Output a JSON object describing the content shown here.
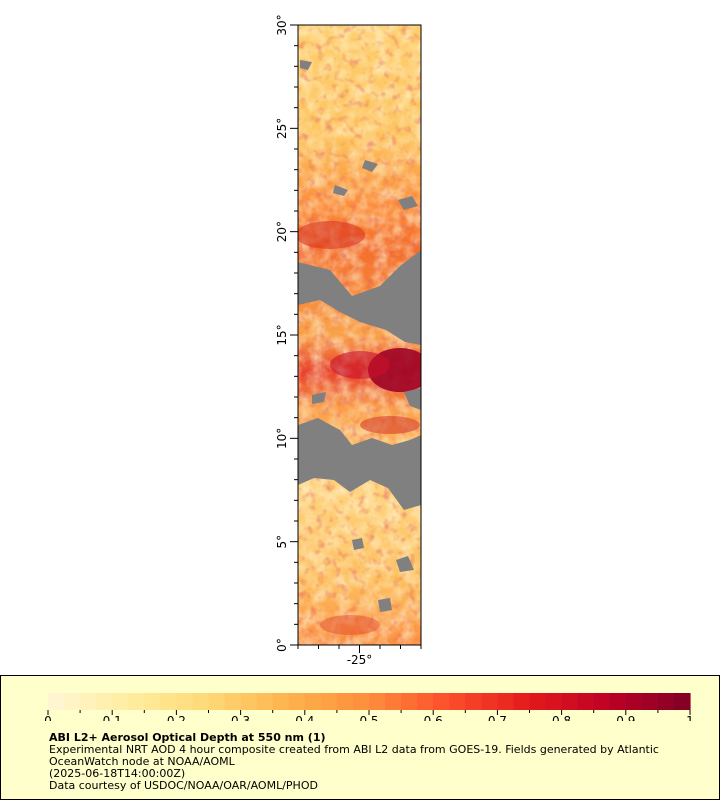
{
  "map": {
    "lat_labels": [
      "0°",
      "5°",
      "10°",
      "15°",
      "20°",
      "25°",
      "30°"
    ],
    "lon_labels": [
      "-25°"
    ],
    "lat_range": [
      0,
      30
    ],
    "lon_range": [
      -28,
      -22
    ],
    "missing_color": "#808080",
    "colormap": [
      "#fff7d6",
      "#ffeda0",
      "#fed976",
      "#feb24c",
      "#fd8d3c",
      "#fc4e2a",
      "#e31a1c",
      "#bd0026",
      "#800026"
    ]
  },
  "colorbar": {
    "min": 0,
    "max": 1,
    "tick_labels": [
      "0",
      "0.1",
      "0.2",
      "0.3",
      "0.4",
      "0.5",
      "0.6",
      "0.7",
      "0.8",
      "0.9",
      "1"
    ]
  },
  "caption": {
    "title": "ABI L2+ Aerosol Optical Depth at 550 nm (1)",
    "line1": "Experimental NRT AOD 4 hour composite created from ABI L2 data from GOES-19. Fields generated by Atlantic",
    "line2": "OceanWatch node at NOAA/AOML",
    "line3": "(2025-06-18T14:00:00Z)",
    "line4": "Data courtesy of USDOC/NOAA/OAR/AOML/PHOD"
  }
}
